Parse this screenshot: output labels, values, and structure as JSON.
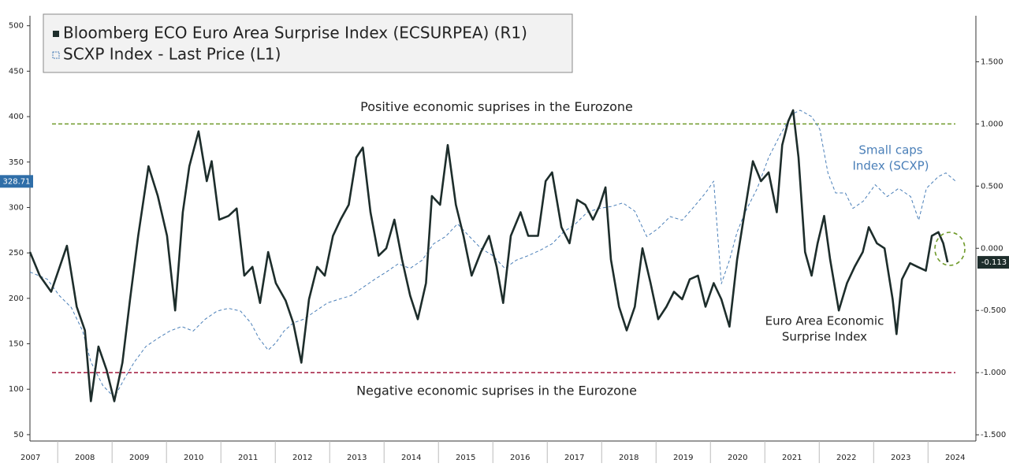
{
  "chart_data": {
    "type": "line",
    "legend": "top-left",
    "xlim": [
      2007.49,
      2024.88
    ],
    "xticks": [
      {
        "value": 2007.5,
        "label": "2007"
      },
      {
        "value": 2008.5,
        "label": "2008"
      },
      {
        "value": 2009.5,
        "label": "2009"
      },
      {
        "value": 2010.5,
        "label": "2010"
      },
      {
        "value": 2011.5,
        "label": "2011"
      },
      {
        "value": 2012.5,
        "label": "2012"
      },
      {
        "value": 2013.5,
        "label": "2013"
      },
      {
        "value": 2014.5,
        "label": "2014"
      },
      {
        "value": 2015.5,
        "label": "2015"
      },
      {
        "value": 2016.5,
        "label": "2016"
      },
      {
        "value": 2017.5,
        "label": "2017"
      },
      {
        "value": 2018.5,
        "label": "2018"
      },
      {
        "value": 2019.5,
        "label": "2019"
      },
      {
        "value": 2020.5,
        "label": "2020"
      },
      {
        "value": 2021.5,
        "label": "2021"
      },
      {
        "value": 2022.5,
        "label": "2022"
      },
      {
        "value": 2023.5,
        "label": "2023"
      },
      {
        "value": 2024.5,
        "label": "2024"
      }
    ],
    "ylim": [
      43,
      511
    ],
    "yticks": [
      50,
      100,
      150,
      200,
      250,
      300,
      350,
      400,
      450,
      500
    ],
    "y2lim": [
      -1.55,
      1.87
    ],
    "y2ticks": [
      {
        "value": 1.5,
        "label": "1.500"
      },
      {
        "value": 1.0,
        "label": "1.000"
      },
      {
        "value": 0.5,
        "label": "0.500"
      },
      {
        "value": 0,
        "label": "0.000"
      },
      {
        "value": -0.5,
        "label": "-0.500"
      },
      {
        "value": -1.0,
        "label": "-1.000"
      },
      {
        "value": -1.5,
        "label": "-1.500"
      }
    ],
    "series": [
      {
        "name": "Bloomberg ECO Euro Area Surprise Index (ECSURPEA) (R1)",
        "color": "#1d2d2b",
        "axis": "y2",
        "dash": false,
        "last_label": "-0.113",
        "x": [
          2007.49,
          2007.67,
          2007.88,
          2008.17,
          2008.35,
          2008.5,
          2008.61,
          2008.75,
          2008.9,
          2009.04,
          2009.19,
          2009.33,
          2009.48,
          2009.67,
          2009.84,
          2010.01,
          2010.16,
          2010.3,
          2010.42,
          2010.59,
          2010.74,
          2010.83,
          2010.97,
          2011.14,
          2011.29,
          2011.43,
          2011.58,
          2011.72,
          2011.87,
          2012.01,
          2012.19,
          2012.33,
          2012.48,
          2012.62,
          2012.77,
          2012.91,
          2013.06,
          2013.2,
          2013.35,
          2013.49,
          2013.61,
          2013.75,
          2013.9,
          2014.04,
          2014.19,
          2014.33,
          2014.48,
          2014.62,
          2014.77,
          2014.88,
          2015.03,
          2015.17,
          2015.32,
          2015.46,
          2015.61,
          2015.78,
          2015.93,
          2016.07,
          2016.19,
          2016.33,
          2016.51,
          2016.65,
          2016.83,
          2016.97,
          2017.09,
          2017.26,
          2017.41,
          2017.55,
          2017.7,
          2017.84,
          2017.96,
          2018.07,
          2018.17,
          2018.32,
          2018.46,
          2018.61,
          2018.75,
          2018.9,
          2019.04,
          2019.19,
          2019.33,
          2019.48,
          2019.62,
          2019.77,
          2019.91,
          2020.06,
          2020.2,
          2020.35,
          2020.49,
          2020.64,
          2020.78,
          2020.93,
          2021.07,
          2021.22,
          2021.32,
          2021.43,
          2021.52,
          2021.62,
          2021.74,
          2021.86,
          2021.97,
          2022.09,
          2022.2,
          2022.36,
          2022.51,
          2022.65,
          2022.8,
          2022.91,
          2023.06,
          2023.2,
          2023.35,
          2023.42,
          2023.52,
          2023.67,
          2023.81,
          2023.96,
          2024.07,
          2024.19,
          2024.28,
          2024.36
        ],
        "values": [
          -0.03,
          -0.22,
          -0.35,
          0.02,
          -0.47,
          -0.66,
          -1.23,
          -0.79,
          -0.98,
          -1.23,
          -0.92,
          -0.41,
          0.1,
          0.66,
          0.42,
          0.1,
          -0.5,
          0.29,
          0.66,
          0.94,
          0.54,
          0.7,
          0.23,
          0.26,
          0.32,
          -0.22,
          -0.15,
          -0.44,
          -0.03,
          -0.28,
          -0.42,
          -0.6,
          -0.92,
          -0.41,
          -0.15,
          -0.22,
          0.1,
          0.23,
          0.35,
          0.73,
          0.81,
          0.29,
          -0.06,
          0.0,
          0.23,
          -0.09,
          -0.38,
          -0.57,
          -0.28,
          0.42,
          0.35,
          0.83,
          0.35,
          0.1,
          -0.22,
          -0.03,
          0.1,
          -0.15,
          -0.44,
          0.1,
          0.29,
          0.1,
          0.1,
          0.54,
          0.61,
          0.17,
          0.04,
          0.39,
          0.35,
          0.23,
          0.34,
          0.49,
          -0.09,
          -0.47,
          -0.66,
          -0.47,
          0.0,
          -0.28,
          -0.57,
          -0.47,
          -0.35,
          -0.41,
          -0.25,
          -0.22,
          -0.47,
          -0.28,
          -0.41,
          -0.63,
          -0.09,
          0.32,
          0.7,
          0.54,
          0.61,
          0.29,
          0.83,
          1.02,
          1.11,
          0.73,
          -0.03,
          -0.22,
          0.04,
          0.26,
          -0.09,
          -0.5,
          -0.28,
          -0.15,
          -0.03,
          0.17,
          0.04,
          0.0,
          -0.41,
          -0.69,
          -0.25,
          -0.12,
          -0.15,
          -0.18,
          0.1,
          0.13,
          0.04,
          -0.113
        ]
      },
      {
        "name": "SCXP Index - Last Price (L1)",
        "color": "#4a7fb8",
        "axis": "y",
        "dash": true,
        "last_label": "328.71",
        "x": [
          2007.49,
          2007.81,
          2008.03,
          2008.25,
          2008.46,
          2008.61,
          2008.83,
          2009.04,
          2009.23,
          2009.41,
          2009.62,
          2009.84,
          2010.06,
          2010.28,
          2010.49,
          2010.71,
          2010.93,
          2011.14,
          2011.36,
          2011.55,
          2011.7,
          2011.87,
          2012.01,
          2012.16,
          2012.33,
          2012.52,
          2012.74,
          2012.96,
          2013.17,
          2013.39,
          2013.61,
          2013.83,
          2014.04,
          2014.26,
          2014.48,
          2014.7,
          2014.91,
          2015.13,
          2015.35,
          2015.57,
          2015.78,
          2016.0,
          2016.22,
          2016.43,
          2016.65,
          2016.87,
          2017.09,
          2017.3,
          2017.52,
          2017.74,
          2017.96,
          2018.17,
          2018.39,
          2018.61,
          2018.83,
          2019.04,
          2019.26,
          2019.48,
          2019.7,
          2019.91,
          2020.06,
          2020.2,
          2020.35,
          2020.49,
          2020.64,
          2020.86,
          2021.07,
          2021.29,
          2021.51,
          2021.65,
          2021.86,
          2022.01,
          2022.16,
          2022.3,
          2022.48,
          2022.62,
          2022.81,
          2023.03,
          2023.25,
          2023.46,
          2023.68,
          2023.83,
          2023.97,
          2024.19,
          2024.33,
          2024.51
        ],
        "values": [
          229,
          221,
          203,
          190,
          164,
          130,
          104,
          91,
          112,
          130,
          147,
          156,
          164,
          169,
          164,
          177,
          186,
          189,
          186,
          173,
          156,
          143,
          151,
          164,
          173,
          177,
          186,
          195,
          199,
          203,
          212,
          221,
          229,
          238,
          233,
          242,
          260,
          268,
          282,
          268,
          255,
          247,
          233,
          242,
          247,
          253,
          260,
          273,
          282,
          295,
          299,
          301,
          305,
          296,
          268,
          277,
          290,
          286,
          301,
          316,
          329,
          216,
          242,
          273,
          295,
          321,
          355,
          381,
          403,
          407,
          400,
          386,
          338,
          316,
          316,
          299,
          307,
          325,
          312,
          321,
          312,
          286,
          321,
          334,
          338,
          328.71
        ]
      }
    ],
    "reference_lines": [
      {
        "value": 1.0,
        "axis": "y2",
        "color": "#6f9a2a",
        "label": "Positive economic suprises in the Eurozone"
      },
      {
        "value": -1.0,
        "axis": "y2",
        "color": "#a8294a",
        "label": "Negative economic suprises in the Eurozone"
      }
    ],
    "annotations": [
      {
        "lines": [
          "Small caps",
          "Index (SCXP)"
        ],
        "color": "#4a7fb8"
      },
      {
        "lines": [
          "Euro Area Economic",
          "Surprise Index"
        ],
        "color": "#222222"
      }
    ]
  }
}
